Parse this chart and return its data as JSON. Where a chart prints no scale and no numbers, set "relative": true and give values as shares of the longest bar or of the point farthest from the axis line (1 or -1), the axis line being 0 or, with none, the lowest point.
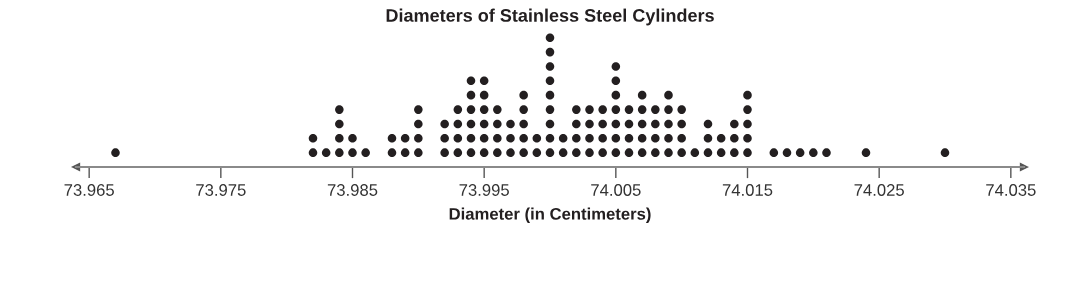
{
  "chart_data": {
    "type": "scatter",
    "title": "Diameters of Stainless Steel Cylinders",
    "xlabel": "Diameter (in Centimeters)",
    "x": [
      73.967,
      73.982,
      73.982,
      73.983,
      73.984,
      73.984,
      73.984,
      73.984,
      73.985,
      73.985,
      73.986,
      73.988,
      73.988,
      73.989,
      73.989,
      73.99,
      73.99,
      73.99,
      73.99,
      73.992,
      73.992,
      73.992,
      73.993,
      73.993,
      73.993,
      73.993,
      73.994,
      73.994,
      73.994,
      73.994,
      73.994,
      73.994,
      73.995,
      73.995,
      73.995,
      73.995,
      73.995,
      73.995,
      73.996,
      73.996,
      73.996,
      73.996,
      73.997,
      73.997,
      73.997,
      73.998,
      73.998,
      73.998,
      73.998,
      73.998,
      73.999,
      73.999,
      74.0,
      74.0,
      74.0,
      74.0,
      74.0,
      74.0,
      74.0,
      74.0,
      74.0,
      74.001,
      74.001,
      74.002,
      74.002,
      74.002,
      74.002,
      74.003,
      74.003,
      74.003,
      74.003,
      74.004,
      74.004,
      74.004,
      74.004,
      74.005,
      74.005,
      74.005,
      74.005,
      74.005,
      74.005,
      74.005,
      74.006,
      74.006,
      74.006,
      74.006,
      74.007,
      74.007,
      74.007,
      74.007,
      74.007,
      74.008,
      74.008,
      74.008,
      74.008,
      74.009,
      74.009,
      74.009,
      74.009,
      74.009,
      74.01,
      74.01,
      74.01,
      74.01,
      74.011,
      74.012,
      74.012,
      74.012,
      74.013,
      74.013,
      74.014,
      74.014,
      74.014,
      74.015,
      74.015,
      74.015,
      74.015,
      74.015,
      74.017,
      74.018,
      74.019,
      74.02,
      74.021,
      74.024,
      74.03
    ],
    "values": [
      0.111,
      0.111,
      0.222,
      0.111,
      0.111,
      0.222,
      0.333,
      0.444,
      0.111,
      0.222,
      0.111,
      0.111,
      0.222,
      0.111,
      0.222,
      0.111,
      0.222,
      0.333,
      0.444,
      0.111,
      0.222,
      0.333,
      0.111,
      0.222,
      0.333,
      0.444,
      0.111,
      0.222,
      0.333,
      0.444,
      0.556,
      0.667,
      0.111,
      0.222,
      0.333,
      0.444,
      0.556,
      0.667,
      0.111,
      0.222,
      0.333,
      0.444,
      0.111,
      0.222,
      0.333,
      0.111,
      0.222,
      0.333,
      0.444,
      0.556,
      0.111,
      0.222,
      0.111,
      0.222,
      0.333,
      0.444,
      0.556,
      0.667,
      0.778,
      0.889,
      1,
      0.111,
      0.222,
      0.111,
      0.222,
      0.333,
      0.444,
      0.111,
      0.222,
      0.333,
      0.444,
      0.111,
      0.222,
      0.333,
      0.444,
      0.111,
      0.222,
      0.333,
      0.444,
      0.556,
      0.667,
      0.778,
      0.111,
      0.222,
      0.333,
      0.444,
      0.111,
      0.222,
      0.333,
      0.444,
      0.556,
      0.111,
      0.222,
      0.333,
      0.444,
      0.111,
      0.222,
      0.333,
      0.444,
      0.556,
      0.111,
      0.222,
      0.333,
      0.444,
      0.111,
      0.111,
      0.222,
      0.333,
      0.111,
      0.222,
      0.111,
      0.222,
      0.333,
      0.111,
      0.222,
      0.333,
      0.444,
      0.556,
      0.111,
      0.111,
      0.111,
      0.111,
      0.111,
      0.111,
      0.111
    ],
    "relative": true,
    "color": "#231f20",
    "marker": "circle",
    "xlim": [
      73.964,
      74.036
    ],
    "xticks": [
      73.965,
      73.975,
      73.985,
      73.995,
      74.005,
      74.015,
      74.025,
      74.035
    ],
    "tick_labels": "x",
    "grid": false,
    "legend": false
  }
}
